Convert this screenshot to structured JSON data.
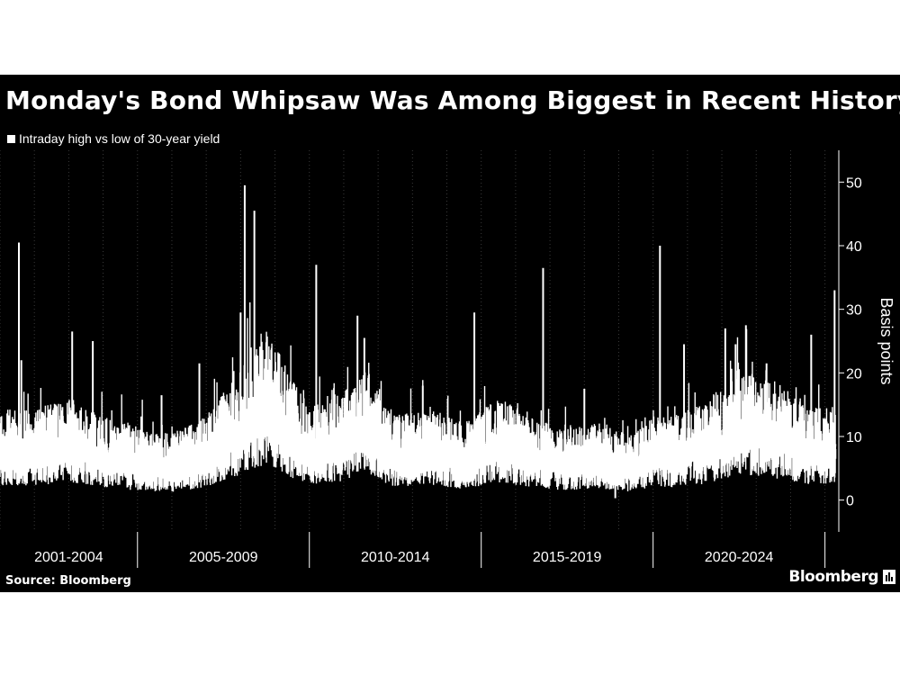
{
  "title": "Monday's Bond Whipsaw Was Among Biggest in Recent History",
  "legend_label": "Intraday high vs low of 30-year yield",
  "source": "Source: Bloomberg",
  "brand": "Bloomberg",
  "colors": {
    "background": "#000000",
    "series": "#ffffff",
    "grid": "#3a3a3a"
  },
  "chart_data": {
    "type": "line",
    "series": [
      {
        "name": "Intraday high vs low of 30-year yield"
      }
    ],
    "ylabel": "Basis points",
    "xlabel": "",
    "ylim": [
      -5,
      55
    ],
    "yticks": [
      0,
      10,
      20,
      30,
      40,
      50
    ],
    "x_range": [
      2001,
      2025.35
    ],
    "period_labels": [
      "2001-2004",
      "2005-2009",
      "2010-2014",
      "2015-2019",
      "2020-2024"
    ],
    "period_bounds": [
      2001,
      2005,
      2010,
      2015,
      2020,
      2025
    ],
    "yearly_gridlines": true,
    "grid": "vertical-dotted",
    "baseline": [
      [
        2001.0,
        7.5
      ],
      [
        2002.0,
        7.5
      ],
      [
        2003.0,
        8.5
      ],
      [
        2004.0,
        7.0
      ],
      [
        2005.0,
        6.0
      ],
      [
        2006.0,
        5.5
      ],
      [
        2007.0,
        7.0
      ],
      [
        2008.0,
        11.0
      ],
      [
        2008.8,
        14.0
      ],
      [
        2009.5,
        10.0
      ],
      [
        2010.0,
        8.0
      ],
      [
        2011.0,
        9.0
      ],
      [
        2011.7,
        11.0
      ],
      [
        2012.5,
        7.0
      ],
      [
        2013.5,
        7.5
      ],
      [
        2014.5,
        6.5
      ],
      [
        2015.5,
        8.5
      ],
      [
        2016.5,
        7.0
      ],
      [
        2017.5,
        6.0
      ],
      [
        2018.5,
        6.5
      ],
      [
        2019.5,
        5.5
      ],
      [
        2020.0,
        7.5
      ],
      [
        2020.5,
        7.0
      ],
      [
        2021.5,
        8.0
      ],
      [
        2022.5,
        11.0
      ],
      [
        2023.5,
        10.0
      ],
      [
        2024.5,
        8.0
      ],
      [
        2025.3,
        8.0
      ]
    ],
    "spikes": [
      [
        2001.55,
        40.5
      ],
      [
        2001.62,
        22.0
      ],
      [
        2003.1,
        26.5
      ],
      [
        2003.7,
        25.0
      ],
      [
        2005.7,
        16.5
      ],
      [
        2006.8,
        21.5
      ],
      [
        2008.0,
        29.5
      ],
      [
        2008.12,
        49.5
      ],
      [
        2008.3,
        24.0
      ],
      [
        2008.4,
        45.5
      ],
      [
        2009.1,
        23.0
      ],
      [
        2010.2,
        37.0
      ],
      [
        2011.4,
        29.0
      ],
      [
        2011.6,
        25.5
      ],
      [
        2013.3,
        18.0
      ],
      [
        2014.8,
        29.5
      ],
      [
        2016.8,
        36.5
      ],
      [
        2018.0,
        17.5
      ],
      [
        2020.2,
        40.0
      ],
      [
        2020.9,
        24.5
      ],
      [
        2022.1,
        27.0
      ],
      [
        2022.4,
        24.5
      ],
      [
        2022.7,
        27.5
      ],
      [
        2023.3,
        21.5
      ],
      [
        2024.6,
        26.0
      ],
      [
        2025.28,
        33.0
      ],
      [
        2018.9,
        0.3
      ]
    ]
  }
}
